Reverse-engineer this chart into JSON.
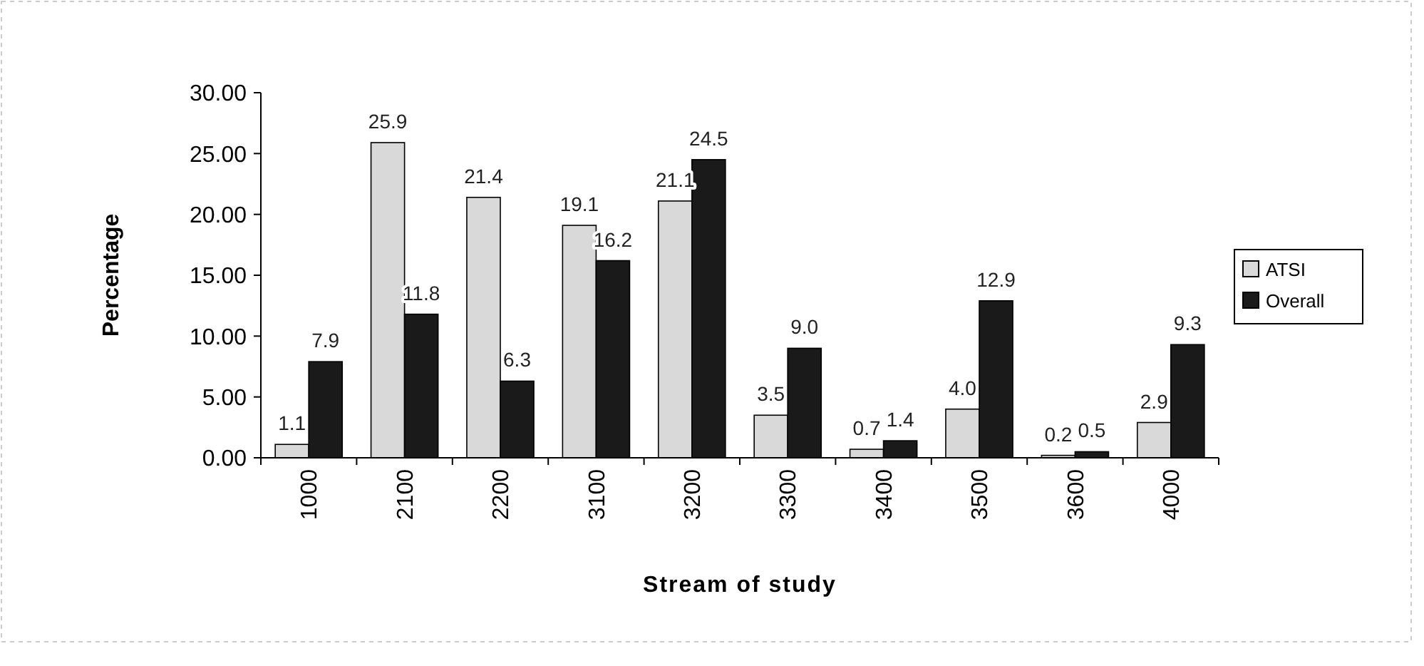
{
  "chart_data": {
    "type": "bar",
    "xlabel": "Stream of study",
    "ylabel": "Percentage",
    "categories": [
      "1000",
      "2100",
      "2200",
      "3100",
      "3200",
      "3300",
      "3400",
      "3500",
      "3600",
      "4000"
    ],
    "series": [
      {
        "name": "ATSI",
        "color": "#d9d9d9",
        "values": [
          1.1,
          25.9,
          21.4,
          19.1,
          21.1,
          3.5,
          0.7,
          4.0,
          0.2,
          2.9
        ],
        "value_labels": [
          "1.1",
          "25.9",
          "21.4",
          "19.1",
          "21.1",
          "3.5",
          "0.7",
          "4.0",
          "0.2",
          "2.9"
        ]
      },
      {
        "name": "Overall",
        "color": "#1a1a1a",
        "values": [
          7.9,
          11.8,
          6.3,
          16.2,
          24.5,
          9.0,
          1.4,
          12.9,
          0.5,
          9.3
        ],
        "value_labels": [
          "7.9",
          "11.8",
          "6.3",
          "16.2",
          "24.5",
          "9.0",
          "1.4",
          "12.9",
          "0.5",
          "9.3"
        ]
      }
    ],
    "ylim": [
      0,
      30
    ],
    "yticks": [
      {
        "value": 0,
        "label": "0.00"
      },
      {
        "value": 5,
        "label": "5.00"
      },
      {
        "value": 10,
        "label": "10.00"
      },
      {
        "value": 15,
        "label": "15.00"
      },
      {
        "value": 20,
        "label": "20.00"
      },
      {
        "value": 25,
        "label": "25.00"
      },
      {
        "value": 30,
        "label": "30.00"
      }
    ],
    "grid": false,
    "legend": "right"
  }
}
